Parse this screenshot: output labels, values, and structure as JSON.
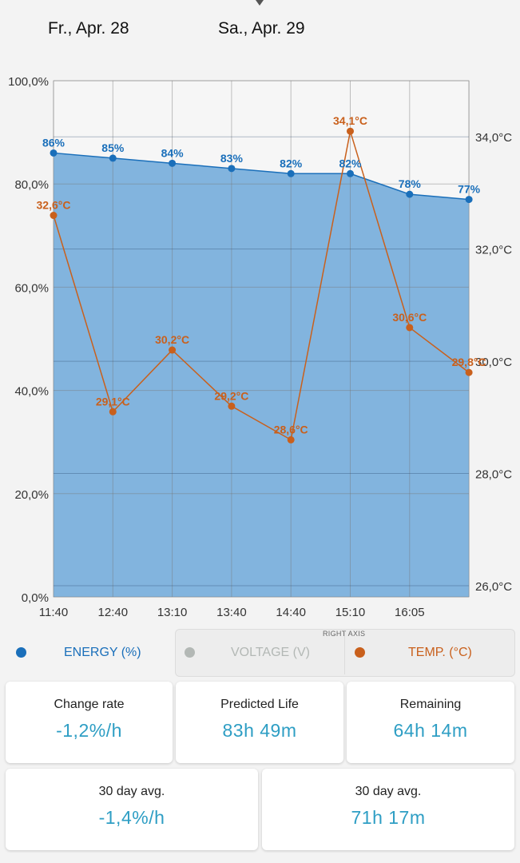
{
  "header": {
    "dates": [
      "Fr., Apr. 28",
      "Sa., Apr. 29"
    ]
  },
  "colors": {
    "energy": "#1a6fba",
    "energy_fill": "#82b4de",
    "temp": "#c9601c",
    "voltage": "#b3b8b5",
    "card_value": "#2e9ec4"
  },
  "chart_data": {
    "type": "line",
    "categories": [
      "11:40",
      "12:40",
      "13:10",
      "13:40",
      "14:40",
      "15:10",
      "16:05",
      ""
    ],
    "left_axis": {
      "ticks": [
        "0,0%",
        "20,0%",
        "40,0%",
        "60,0%",
        "80,0%",
        "100,0%"
      ],
      "ylim": [
        0,
        100
      ]
    },
    "right_axis": {
      "ticks": [
        "26,0°C",
        "28,0°C",
        "30,0°C",
        "32,0°C",
        "34,0°C"
      ],
      "ylim": [
        25.8,
        35.0
      ]
    },
    "series": [
      {
        "name": "ENERGY (%)",
        "axis": "left",
        "type": "area",
        "values": [
          86,
          85,
          84,
          83,
          82,
          82,
          78,
          77
        ],
        "labels": [
          "86%",
          "85%",
          "84%",
          "83%",
          "82%",
          "82%",
          "78%",
          "77%"
        ]
      },
      {
        "name": "TEMP. (°C)",
        "axis": "right",
        "type": "line",
        "values": [
          32.6,
          29.1,
          30.2,
          29.2,
          28.6,
          34.1,
          30.6,
          29.8
        ],
        "labels": [
          "32,6°C",
          "29,1°C",
          "30,2°C",
          "29,2°C",
          "28,6°C",
          "34,1°C",
          "30,6°C",
          "29,8°C"
        ]
      }
    ]
  },
  "legend": {
    "energy": "ENERGY (%)",
    "voltage": "VOLTAGE (V)",
    "temp": "TEMP. (°C)",
    "right_axis_caption": "RIGHT AXIS"
  },
  "stats": [
    {
      "title": "Change rate",
      "value": "-1,2%/h"
    },
    {
      "title": "Predicted Life",
      "value": "83h 49m"
    },
    {
      "title": "Remaining",
      "value": "64h 14m"
    },
    {
      "title": "30 day avg.",
      "value": "-1,4%/h"
    },
    {
      "title": "30 day avg.",
      "value": "71h 17m"
    }
  ]
}
